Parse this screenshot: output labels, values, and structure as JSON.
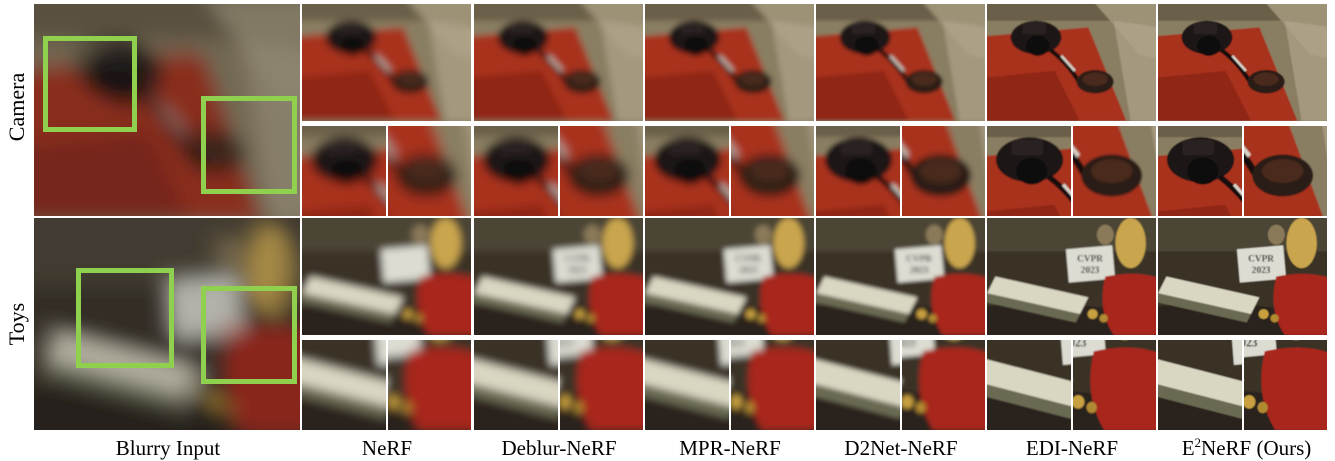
{
  "rows": [
    {
      "label": "Camera",
      "scene": "camera"
    },
    {
      "label": "Toys",
      "scene": "toys"
    }
  ],
  "columns": [
    {
      "label": "Blurry Input",
      "blur": 6
    },
    {
      "label": "NeRF",
      "blur": 4.5
    },
    {
      "label": "Deblur-NeRF",
      "blur": 3.8
    },
    {
      "label": "MPR-NeRF",
      "blur": 3.2
    },
    {
      "label": "D2Net-NeRF",
      "blur": 2.2
    },
    {
      "label": "EDI-NeRF",
      "blur": 0.8
    },
    {
      "label_prefix": "E",
      "label_sup": "2",
      "label_suffix": "NeRF (Ours)",
      "blur": 0.5
    }
  ],
  "sign_text": {
    "line1": "CVPR",
    "line2": "2023"
  },
  "colors": {
    "highlight_box": "#8fd14f",
    "table_red": "#a8301c",
    "background": "#ffffff"
  }
}
